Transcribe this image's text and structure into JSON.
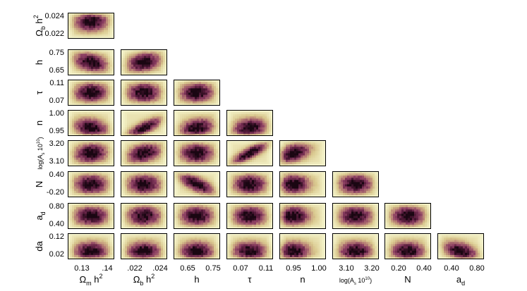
{
  "chart_data": {
    "type": "heatmap",
    "parameters": [
      {
        "id": "omega_m_h2",
        "label": "Ωm h2",
        "label_parts": [
          "Ω",
          "m",
          " h",
          "2"
        ],
        "ticks": [
          "0.13",
          ".14"
        ],
        "range": [
          0.13,
          0.14
        ]
      },
      {
        "id": "omega_b_h2",
        "label": "Ωb h2",
        "label_parts": [
          "Ω",
          "b",
          " h",
          "2"
        ],
        "ticks": [
          ".022",
          ".024",
          "0.022",
          "0.024"
        ],
        "range": [
          0.022,
          0.024
        ]
      },
      {
        "id": "h",
        "label": "h",
        "label_parts": [
          "h"
        ],
        "ticks": [
          "0.65",
          "0.75"
        ],
        "range": [
          0.65,
          0.75
        ]
      },
      {
        "id": "tau",
        "label": "τ",
        "label_parts": [
          "τ"
        ],
        "ticks": [
          "0.07",
          "0.11"
        ],
        "range": [
          0.07,
          0.11
        ]
      },
      {
        "id": "n",
        "label": "n",
        "label_parts": [
          "n"
        ],
        "ticks": [
          "0.95",
          "1.00"
        ],
        "range": [
          0.95,
          1.0
        ]
      },
      {
        "id": "log_As",
        "label": "log(As 1010)",
        "label_parts": [
          "log(A",
          "s",
          " 10",
          "10",
          ")"
        ],
        "ticks": [
          "3.10",
          "3.20"
        ],
        "range": [
          3.1,
          3.2
        ]
      },
      {
        "id": "N",
        "label": "N",
        "label_parts": [
          "N"
        ],
        "ticks": [
          "0.20",
          "0.40",
          "-0.20"
        ],
        "range": [
          -0.2,
          0.4
        ]
      },
      {
        "id": "a_d",
        "label": "ad",
        "label_parts": [
          "a",
          "d"
        ],
        "ticks": [
          "0.40",
          "0.80"
        ],
        "range": [
          0.4,
          0.8
        ]
      },
      {
        "id": "da",
        "label": "da",
        "label_parts": [
          "da"
        ],
        "ticks": [
          "0.02",
          "0.12"
        ],
        "range": [
          0.02,
          0.12
        ]
      }
    ],
    "x_tick_labels": [
      [
        "0.13",
        ".14"
      ],
      [
        ".022",
        ".024"
      ],
      [
        "0.65",
        "0.75"
      ],
      [
        "0.07",
        "0.11"
      ],
      [
        "0.95",
        "1.00"
      ],
      [
        "3.10",
        "3.20"
      ],
      [
        "0.20",
        "0.40"
      ],
      [
        "0.40",
        "0.80"
      ]
    ],
    "y_tick_labels": [
      [
        "0.024",
        "0.022"
      ],
      [
        "0.75",
        "0.65"
      ],
      [
        "0.11",
        "0.07"
      ],
      [
        "1.00",
        "0.95"
      ],
      [
        "3.20",
        "3.10"
      ],
      [
        "0.40",
        "-0.20"
      ],
      [
        "0.80",
        "0.40"
      ],
      [
        "0.12",
        "0.02"
      ]
    ],
    "colormap": [
      "#ffffff",
      "#f2f0c4",
      "#d9c88e",
      "#b98275",
      "#8c3f63",
      "#5a1d3e",
      "#1a0612"
    ],
    "panels": [
      {
        "row": 1,
        "col": 0,
        "x": 0.135,
        "y": 0.0233,
        "corr": 0.05
      },
      {
        "row": 2,
        "col": 0,
        "x": 0.135,
        "y": 0.7,
        "corr": -0.3
      },
      {
        "row": 2,
        "col": 1,
        "x": 0.023,
        "y": 0.7,
        "corr": 0.25
      },
      {
        "row": 3,
        "col": 0,
        "x": 0.135,
        "y": 0.09,
        "corr": 0.05
      },
      {
        "row": 3,
        "col": 1,
        "x": 0.023,
        "y": 0.09,
        "corr": 0.0
      },
      {
        "row": 3,
        "col": 2,
        "x": 0.7,
        "y": 0.09,
        "corr": 0.05
      },
      {
        "row": 4,
        "col": 0,
        "x": 0.135,
        "y": 0.965,
        "corr": -0.2
      },
      {
        "row": 4,
        "col": 1,
        "x": 0.023,
        "y": 0.965,
        "corr": 0.75
      },
      {
        "row": 4,
        "col": 2,
        "x": 0.7,
        "y": 0.965,
        "corr": 0.25
      },
      {
        "row": 4,
        "col": 3,
        "x": 0.09,
        "y": 0.965,
        "corr": 0.15
      },
      {
        "row": 5,
        "col": 0,
        "x": 0.135,
        "y": 3.15,
        "corr": 0.1
      },
      {
        "row": 5,
        "col": 1,
        "x": 0.023,
        "y": 3.15,
        "corr": 0.3
      },
      {
        "row": 5,
        "col": 2,
        "x": 0.7,
        "y": 3.15,
        "corr": 0.0
      },
      {
        "row": 5,
        "col": 3,
        "x": 0.09,
        "y": 3.15,
        "corr": 0.8
      },
      {
        "row": 5,
        "col": 4,
        "x": 0.965,
        "y": 3.15,
        "corr": 0.4
      },
      {
        "row": 6,
        "col": 0,
        "x": 0.135,
        "y": 0.1,
        "corr": 0.0
      },
      {
        "row": 6,
        "col": 1,
        "x": 0.023,
        "y": 0.1,
        "corr": 0.0
      },
      {
        "row": 6,
        "col": 2,
        "x": 0.7,
        "y": 0.1,
        "corr": -0.65
      },
      {
        "row": 6,
        "col": 3,
        "x": 0.09,
        "y": 0.1,
        "corr": 0.0
      },
      {
        "row": 6,
        "col": 4,
        "x": 0.965,
        "y": 0.1,
        "corr": 0.0
      },
      {
        "row": 6,
        "col": 5,
        "x": 3.15,
        "y": 0.1,
        "corr": 0.0
      },
      {
        "row": 7,
        "col": 0,
        "x": 0.135,
        "y": 0.6,
        "corr": 0.0
      },
      {
        "row": 7,
        "col": 1,
        "x": 0.023,
        "y": 0.6,
        "corr": 0.0
      },
      {
        "row": 7,
        "col": 2,
        "x": 0.7,
        "y": 0.6,
        "corr": 0.0
      },
      {
        "row": 7,
        "col": 3,
        "x": 0.09,
        "y": 0.6,
        "corr": 0.0
      },
      {
        "row": 7,
        "col": 4,
        "x": 0.965,
        "y": 0.6,
        "corr": 0.0
      },
      {
        "row": 7,
        "col": 5,
        "x": 3.15,
        "y": 0.6,
        "corr": 0.0
      },
      {
        "row": 7,
        "col": 6,
        "x": 0.1,
        "y": 0.6,
        "corr": 0.0
      },
      {
        "row": 8,
        "col": 0,
        "x": 0.135,
        "y": 0.05,
        "corr": 0.0
      },
      {
        "row": 8,
        "col": 1,
        "x": 0.023,
        "y": 0.05,
        "corr": 0.0
      },
      {
        "row": 8,
        "col": 2,
        "x": 0.7,
        "y": 0.05,
        "corr": 0.0
      },
      {
        "row": 8,
        "col": 3,
        "x": 0.09,
        "y": 0.05,
        "corr": 0.0
      },
      {
        "row": 8,
        "col": 4,
        "x": 0.965,
        "y": 0.05,
        "corr": 0.0
      },
      {
        "row": 8,
        "col": 5,
        "x": 3.15,
        "y": 0.05,
        "corr": 0.0
      },
      {
        "row": 8,
        "col": 6,
        "x": 0.1,
        "y": 0.05,
        "corr": 0.0
      },
      {
        "row": 8,
        "col": 7,
        "x": 0.6,
        "y": 0.05,
        "corr": -0.4
      }
    ]
  }
}
